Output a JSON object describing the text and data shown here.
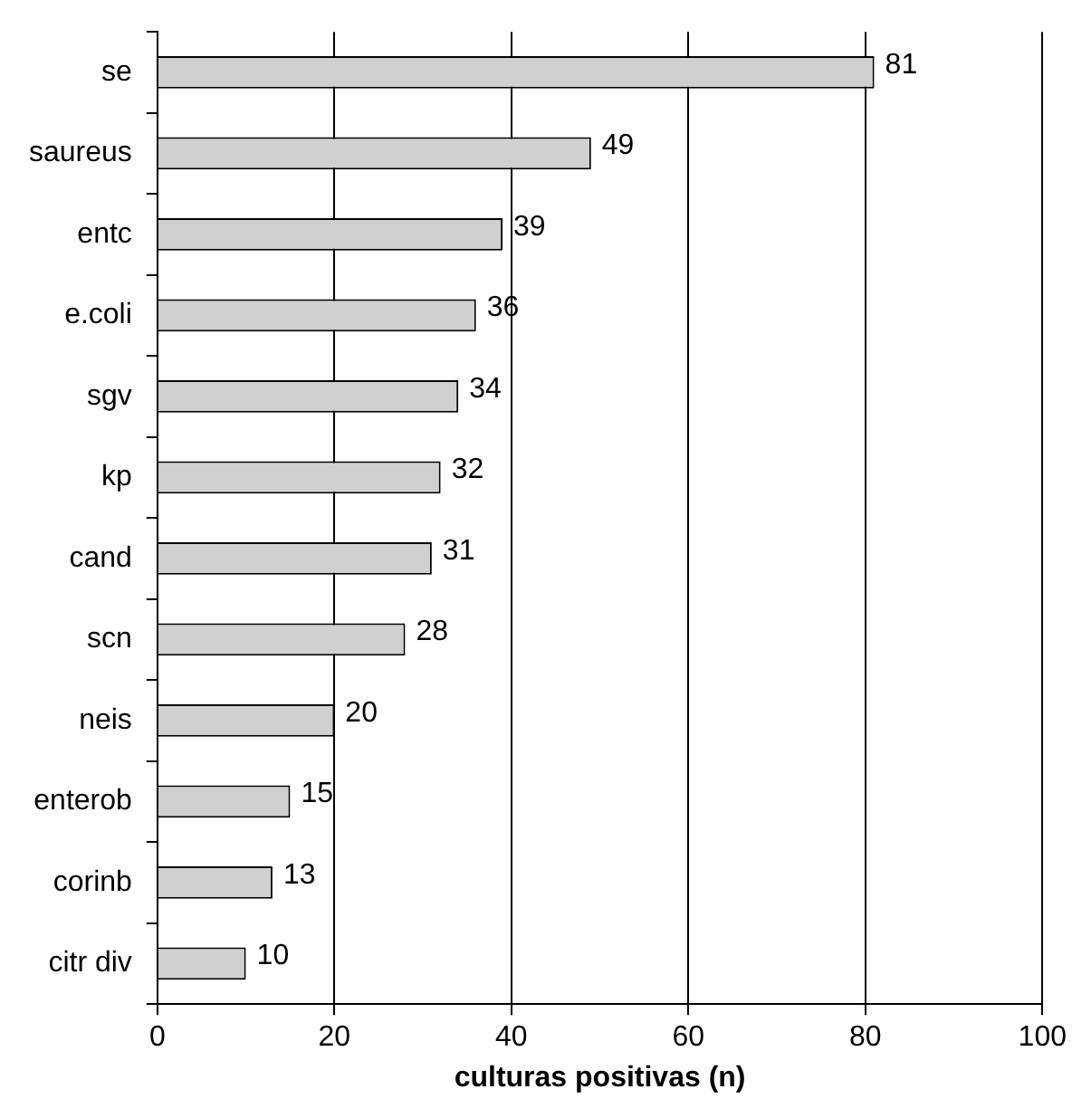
{
  "chart_data": {
    "type": "bar",
    "orientation": "horizontal",
    "xlabel": "culturas positivas (n)",
    "categories": [
      "se",
      "saureus",
      "entc",
      "e.coli",
      "sgv",
      "kp",
      "cand",
      "scn",
      "neis",
      "enterob",
      "corinb",
      "citr div"
    ],
    "values": [
      81,
      49,
      39,
      36,
      34,
      32,
      31,
      28,
      20,
      15,
      13,
      10
    ],
    "color": "#d0d0d0",
    "xlim": [
      0,
      100
    ],
    "xticks": [
      0,
      20,
      40,
      60,
      80,
      100
    ],
    "grid": "x",
    "data_labels": true,
    "legend": false
  }
}
